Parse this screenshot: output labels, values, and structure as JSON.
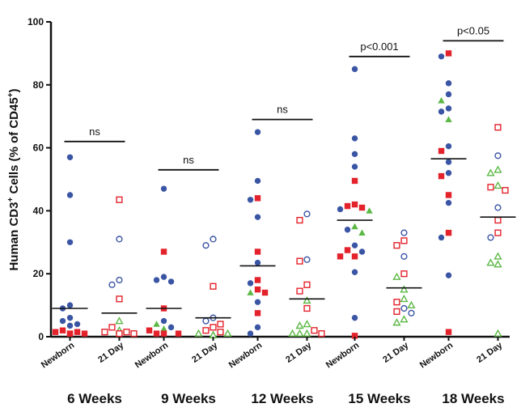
{
  "chart_data": {
    "type": "scatter",
    "ylabel_main": "Human CD3",
    "ylabel_sup1": "+",
    "ylabel_mid": " Cells (% of CD45",
    "ylabel_sup2": "+",
    "ylabel_end": ")",
    "ylim": [
      0,
      100
    ],
    "yticks": [
      "0",
      "20",
      "40",
      "60",
      "80",
      "100"
    ],
    "ytick_values": [
      0,
      20,
      40,
      60,
      80,
      100
    ],
    "colors": {
      "blue": "#3a55a4",
      "red": "#e3222b",
      "green": "#5cb845"
    },
    "groups": [
      {
        "label": "6 Weeks",
        "significance": "ns",
        "bracket_y": 62,
        "newborn": {
          "label": "Newborn",
          "median": 9,
          "points": [
            {
              "y": 57,
              "c": "blue"
            },
            {
              "y": 45,
              "c": "blue"
            },
            {
              "y": 30,
              "c": "blue"
            },
            {
              "y": 10,
              "c": "blue"
            },
            {
              "y": 9,
              "c": "blue"
            },
            {
              "y": 6,
              "c": "blue"
            },
            {
              "y": 5,
              "c": "blue"
            },
            {
              "y": 4,
              "c": "blue"
            },
            {
              "y": 3.5,
              "c": "blue"
            },
            {
              "y": 2,
              "c": "red"
            },
            {
              "y": 1.5,
              "c": "red"
            },
            {
              "y": 1.5,
              "c": "red"
            },
            {
              "y": 1,
              "c": "red"
            },
            {
              "y": 1,
              "c": "red"
            },
            {
              "y": 1,
              "c": "red"
            }
          ]
        },
        "day21": {
          "label": "21 Day",
          "median": 7.5,
          "points": [
            {
              "y": 43.5,
              "c": "red"
            },
            {
              "y": 31,
              "c": "blue"
            },
            {
              "y": 18,
              "c": "blue"
            },
            {
              "y": 16.5,
              "c": "blue"
            },
            {
              "y": 12,
              "c": "red"
            },
            {
              "y": 5,
              "c": "green"
            },
            {
              "y": 3,
              "c": "red"
            },
            {
              "y": 2,
              "c": "green"
            },
            {
              "y": 1.5,
              "c": "red"
            },
            {
              "y": 1.5,
              "c": "red"
            },
            {
              "y": 1,
              "c": "red"
            },
            {
              "y": 1,
              "c": "red"
            }
          ]
        }
      },
      {
        "label": "9 Weeks",
        "significance": "ns",
        "bracket_y": 53,
        "newborn": {
          "label": "Newborn",
          "median": 9,
          "points": [
            {
              "y": 47,
              "c": "blue"
            },
            {
              "y": 27,
              "c": "red"
            },
            {
              "y": 19,
              "c": "blue"
            },
            {
              "y": 18,
              "c": "blue"
            },
            {
              "y": 17.5,
              "c": "blue"
            },
            {
              "y": 9,
              "c": "red"
            },
            {
              "y": 5,
              "c": "blue"
            },
            {
              "y": 4,
              "c": "green"
            },
            {
              "y": 3,
              "c": "blue"
            },
            {
              "y": 2.5,
              "c": "green"
            },
            {
              "y": 2,
              "c": "red"
            },
            {
              "y": 1,
              "c": "red"
            },
            {
              "y": 1,
              "c": "red"
            },
            {
              "y": 1,
              "c": "red"
            }
          ]
        },
        "day21": {
          "label": "21 Day",
          "median": 6,
          "points": [
            {
              "y": 31,
              "c": "blue"
            },
            {
              "y": 29,
              "c": "blue"
            },
            {
              "y": 16,
              "c": "red"
            },
            {
              "y": 6,
              "c": "blue"
            },
            {
              "y": 5,
              "c": "blue"
            },
            {
              "y": 4,
              "c": "red"
            },
            {
              "y": 3,
              "c": "red"
            },
            {
              "y": 2,
              "c": "red"
            },
            {
              "y": 1.5,
              "c": "red"
            },
            {
              "y": 1,
              "c": "green"
            },
            {
              "y": 1,
              "c": "green"
            },
            {
              "y": 0.5,
              "c": "green"
            },
            {
              "y": 0.5,
              "c": "green"
            },
            {
              "y": 0.5,
              "c": "green"
            }
          ]
        }
      },
      {
        "label": "12 Weeks",
        "significance": "ns",
        "bracket_y": 69,
        "newborn": {
          "label": "Newborn",
          "median": 22.5,
          "points": [
            {
              "y": 65,
              "c": "blue"
            },
            {
              "y": 49.5,
              "c": "blue"
            },
            {
              "y": 44,
              "c": "red"
            },
            {
              "y": 43.5,
              "c": "blue"
            },
            {
              "y": 38,
              "c": "blue"
            },
            {
              "y": 27,
              "c": "red"
            },
            {
              "y": 23.5,
              "c": "blue"
            },
            {
              "y": 18,
              "c": "red"
            },
            {
              "y": 17,
              "c": "blue"
            },
            {
              "y": 15,
              "c": "red"
            },
            {
              "y": 14,
              "c": "green"
            },
            {
              "y": 14,
              "c": "red"
            },
            {
              "y": 11,
              "c": "blue"
            },
            {
              "y": 7.5,
              "c": "red"
            },
            {
              "y": 3,
              "c": "blue"
            },
            {
              "y": 1,
              "c": "blue"
            }
          ]
        },
        "day21": {
          "label": "21 Day",
          "median": 12,
          "points": [
            {
              "y": 39,
              "c": "blue"
            },
            {
              "y": 37,
              "c": "red"
            },
            {
              "y": 24.5,
              "c": "blue"
            },
            {
              "y": 24,
              "c": "red"
            },
            {
              "y": 16.5,
              "c": "red"
            },
            {
              "y": 14.5,
              "c": "red"
            },
            {
              "y": 11.5,
              "c": "green"
            },
            {
              "y": 9,
              "c": "red"
            },
            {
              "y": 4,
              "c": "green"
            },
            {
              "y": 3.5,
              "c": "green"
            },
            {
              "y": 2,
              "c": "red"
            },
            {
              "y": 1,
              "c": "green"
            },
            {
              "y": 1,
              "c": "green"
            },
            {
              "y": 1,
              "c": "green"
            },
            {
              "y": 1,
              "c": "red"
            }
          ]
        }
      },
      {
        "label": "15 Weeks",
        "significance": "p<0.001",
        "bracket_y": 89,
        "newborn": {
          "label": "Newborn",
          "median": 37,
          "points": [
            {
              "y": 85,
              "c": "blue"
            },
            {
              "y": 63,
              "c": "blue"
            },
            {
              "y": 58,
              "c": "blue"
            },
            {
              "y": 54,
              "c": "blue"
            },
            {
              "y": 49.5,
              "c": "red"
            },
            {
              "y": 42,
              "c": "red"
            },
            {
              "y": 41.5,
              "c": "red"
            },
            {
              "y": 41,
              "c": "red"
            },
            {
              "y": 40.5,
              "c": "blue"
            },
            {
              "y": 40,
              "c": "green"
            },
            {
              "y": 35,
              "c": "green"
            },
            {
              "y": 34,
              "c": "blue"
            },
            {
              "y": 33,
              "c": "green"
            },
            {
              "y": 29,
              "c": "blue"
            },
            {
              "y": 27.5,
              "c": "red"
            },
            {
              "y": 27,
              "c": "blue"
            },
            {
              "y": 25.5,
              "c": "red"
            },
            {
              "y": 25.5,
              "c": "red"
            },
            {
              "y": 20.5,
              "c": "blue"
            },
            {
              "y": 6,
              "c": "blue"
            },
            {
              "y": 0.3,
              "c": "red"
            }
          ]
        },
        "day21": {
          "label": "21 Day",
          "median": 15.5,
          "points": [
            {
              "y": 33,
              "c": "blue"
            },
            {
              "y": 30.5,
              "c": "red"
            },
            {
              "y": 29,
              "c": "red"
            },
            {
              "y": 25.5,
              "c": "blue"
            },
            {
              "y": 20,
              "c": "red"
            },
            {
              "y": 19,
              "c": "green"
            },
            {
              "y": 15,
              "c": "green"
            },
            {
              "y": 12,
              "c": "green"
            },
            {
              "y": 11,
              "c": "red"
            },
            {
              "y": 10,
              "c": "green"
            },
            {
              "y": 9,
              "c": "blue"
            },
            {
              "y": 8,
              "c": "red"
            },
            {
              "y": 7.5,
              "c": "blue"
            },
            {
              "y": 5.5,
              "c": "green"
            },
            {
              "y": 4.5,
              "c": "green"
            }
          ]
        }
      },
      {
        "label": "18 Weeks",
        "significance": "p<0.05",
        "bracket_y": 94,
        "newborn": {
          "label": "Newborn",
          "median": 56.5,
          "points": [
            {
              "y": 90,
              "c": "red"
            },
            {
              "y": 89,
              "c": "blue"
            },
            {
              "y": 80.5,
              "c": "blue"
            },
            {
              "y": 77,
              "c": "blue"
            },
            {
              "y": 75,
              "c": "green"
            },
            {
              "y": 72.5,
              "c": "blue"
            },
            {
              "y": 71.5,
              "c": "blue"
            },
            {
              "y": 69,
              "c": "green"
            },
            {
              "y": 60.5,
              "c": "blue"
            },
            {
              "y": 59,
              "c": "red"
            },
            {
              "y": 55.5,
              "c": "blue"
            },
            {
              "y": 52,
              "c": "blue"
            },
            {
              "y": 51,
              "c": "red"
            },
            {
              "y": 45,
              "c": "red"
            },
            {
              "y": 42.5,
              "c": "blue"
            },
            {
              "y": 33,
              "c": "red"
            },
            {
              "y": 31.5,
              "c": "blue"
            },
            {
              "y": 19.5,
              "c": "blue"
            },
            {
              "y": 1.5,
              "c": "red"
            }
          ]
        },
        "day21": {
          "label": "21 Day",
          "median": 38,
          "points": [
            {
              "y": 66.5,
              "c": "red"
            },
            {
              "y": 57.5,
              "c": "blue"
            },
            {
              "y": 53,
              "c": "green"
            },
            {
              "y": 52,
              "c": "green"
            },
            {
              "y": 48,
              "c": "green"
            },
            {
              "y": 47.5,
              "c": "red"
            },
            {
              "y": 46.5,
              "c": "red"
            },
            {
              "y": 41,
              "c": "blue"
            },
            {
              "y": 37,
              "c": "red"
            },
            {
              "y": 33,
              "c": "red"
            },
            {
              "y": 31.5,
              "c": "blue"
            },
            {
              "y": 25.5,
              "c": "green"
            },
            {
              "y": 23.5,
              "c": "green"
            },
            {
              "y": 23,
              "c": "green"
            },
            {
              "y": 1,
              "c": "green"
            }
          ]
        }
      }
    ]
  }
}
